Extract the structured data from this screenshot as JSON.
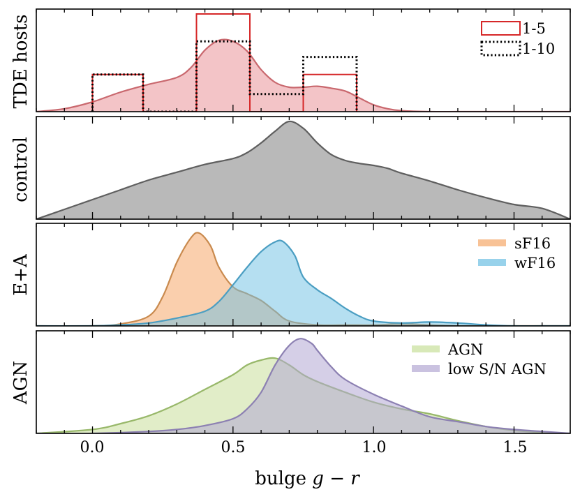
{
  "chart_data": {
    "type": "area",
    "title": "",
    "xlabel": "bulge",
    "xlabel_math": "g − r",
    "xlim": [
      -0.2,
      1.7
    ],
    "xticks": [
      "0.0",
      "0.5",
      "1.0",
      "1.5"
    ],
    "xtick_values": [
      0.0,
      0.5,
      1.0,
      1.5
    ],
    "panels": [
      {
        "ylabel": "TDE hosts",
        "ylim": [
          0,
          1.05
        ],
        "kde": [
          {
            "name": "TDE hosts KDE",
            "color": "#e88a8f",
            "x": [
              -0.2,
              -0.1,
              0.0,
              0.1,
              0.2,
              0.3,
              0.35,
              0.4,
              0.45,
              0.5,
              0.55,
              0.6,
              0.65,
              0.7,
              0.75,
              0.8,
              0.85,
              0.9,
              0.95,
              1.0,
              1.05,
              1.1,
              1.2,
              1.3,
              1.4,
              1.5,
              1.6,
              1.7
            ],
            "y": [
              0.0,
              0.03,
              0.1,
              0.2,
              0.28,
              0.35,
              0.45,
              0.63,
              0.73,
              0.72,
              0.62,
              0.43,
              0.3,
              0.25,
              0.25,
              0.26,
              0.24,
              0.21,
              0.14,
              0.07,
              0.03,
              0.01,
              0.0,
              0.0,
              0.0,
              0.0,
              0.0,
              0.0
            ]
          }
        ],
        "histograms": [
          {
            "name": "1-5",
            "style": "solid",
            "color": "#d62728",
            "edges": [
              0.0,
              0.18,
              0.37,
              0.56,
              0.75,
              0.94
            ],
            "heights": [
              0.38,
              0.0,
              1.0,
              0.0,
              0.38
            ]
          },
          {
            "name": "1-10",
            "style": "dotted",
            "color": "#000000",
            "edges": [
              0.0,
              0.18,
              0.37,
              0.56,
              0.75,
              0.94
            ],
            "heights": [
              0.38,
              0.0,
              0.72,
              0.18,
              0.56
            ]
          }
        ],
        "legend": [
          "1-5",
          "1-10"
        ],
        "legend_position": "top-right"
      },
      {
        "ylabel": "control",
        "ylim": [
          0,
          1.05
        ],
        "kde": [
          {
            "name": "control",
            "color": "#808080",
            "x": [
              -0.2,
              -0.1,
              0.0,
              0.1,
              0.2,
              0.3,
              0.4,
              0.5,
              0.55,
              0.6,
              0.65,
              0.7,
              0.75,
              0.8,
              0.85,
              0.9,
              0.95,
              1.0,
              1.05,
              1.1,
              1.2,
              1.3,
              1.4,
              1.5,
              1.6,
              1.7
            ],
            "y": [
              0.0,
              0.1,
              0.2,
              0.3,
              0.4,
              0.48,
              0.56,
              0.62,
              0.68,
              0.78,
              0.9,
              1.0,
              0.93,
              0.78,
              0.66,
              0.6,
              0.57,
              0.55,
              0.52,
              0.47,
              0.39,
              0.3,
              0.22,
              0.15,
              0.11,
              0.0
            ]
          }
        ],
        "legend": [],
        "legend_position": "none"
      },
      {
        "ylabel": "E+A",
        "ylim": [
          0,
          1.05
        ],
        "kde": [
          {
            "name": "sF16",
            "color": "#f5a86a",
            "x": [
              -0.2,
              0.0,
              0.1,
              0.2,
              0.25,
              0.3,
              0.35,
              0.38,
              0.42,
              0.45,
              0.5,
              0.55,
              0.6,
              0.65,
              0.7,
              0.8,
              0.9,
              1.0,
              1.1,
              1.2,
              1.3,
              1.4,
              1.5,
              1.6,
              1.7
            ],
            "y": [
              0.0,
              0.0,
              0.02,
              0.1,
              0.3,
              0.65,
              0.9,
              0.95,
              0.82,
              0.6,
              0.4,
              0.33,
              0.26,
              0.15,
              0.05,
              0.01,
              0.01,
              0.01,
              0.02,
              0.01,
              0.0,
              0.0,
              0.0,
              0.0,
              0.0
            ]
          },
          {
            "name": "wF16",
            "color": "#6cbfe3",
            "x": [
              -0.2,
              0.0,
              0.1,
              0.2,
              0.3,
              0.4,
              0.45,
              0.5,
              0.55,
              0.6,
              0.65,
              0.68,
              0.72,
              0.75,
              0.8,
              0.85,
              0.9,
              0.95,
              1.0,
              1.1,
              1.2,
              1.3,
              1.4,
              1.5,
              1.6,
              1.7
            ],
            "y": [
              0.0,
              0.0,
              0.01,
              0.03,
              0.08,
              0.15,
              0.25,
              0.42,
              0.6,
              0.76,
              0.86,
              0.86,
              0.72,
              0.5,
              0.37,
              0.28,
              0.18,
              0.1,
              0.05,
              0.03,
              0.04,
              0.03,
              0.01,
              0.0,
              0.0,
              0.0
            ]
          }
        ],
        "legend": [
          "sF16",
          "wF16"
        ],
        "legend_position": "top-right"
      },
      {
        "ylabel": "AGN",
        "ylim": [
          0,
          1.05
        ],
        "kde": [
          {
            "name": "AGN",
            "color": "#c8df9a",
            "x": [
              -0.2,
              0.0,
              0.1,
              0.2,
              0.3,
              0.4,
              0.5,
              0.55,
              0.6,
              0.65,
              0.7,
              0.75,
              0.8,
              0.9,
              1.0,
              1.1,
              1.2,
              1.3,
              1.4,
              1.5,
              1.6,
              1.7
            ],
            "y": [
              0.0,
              0.04,
              0.1,
              0.18,
              0.3,
              0.45,
              0.6,
              0.7,
              0.75,
              0.77,
              0.7,
              0.6,
              0.53,
              0.42,
              0.32,
              0.25,
              0.2,
              0.13,
              0.07,
              0.03,
              0.01,
              0.0
            ]
          },
          {
            "name": "low S/N AGN",
            "color": "#b3a8d3",
            "x": [
              -0.2,
              0.0,
              0.2,
              0.3,
              0.4,
              0.5,
              0.55,
              0.6,
              0.65,
              0.7,
              0.74,
              0.78,
              0.8,
              0.85,
              0.9,
              1.0,
              1.1,
              1.2,
              1.3,
              1.4,
              1.5,
              1.6,
              1.7
            ],
            "y": [
              0.0,
              0.0,
              0.02,
              0.04,
              0.08,
              0.15,
              0.25,
              0.42,
              0.7,
              0.9,
              0.97,
              0.92,
              0.85,
              0.68,
              0.55,
              0.4,
              0.28,
              0.17,
              0.12,
              0.07,
              0.04,
              0.02,
              0.0
            ]
          }
        ],
        "legend": [
          "AGN",
          "low S/N AGN"
        ],
        "legend_position": "top-right"
      }
    ]
  }
}
